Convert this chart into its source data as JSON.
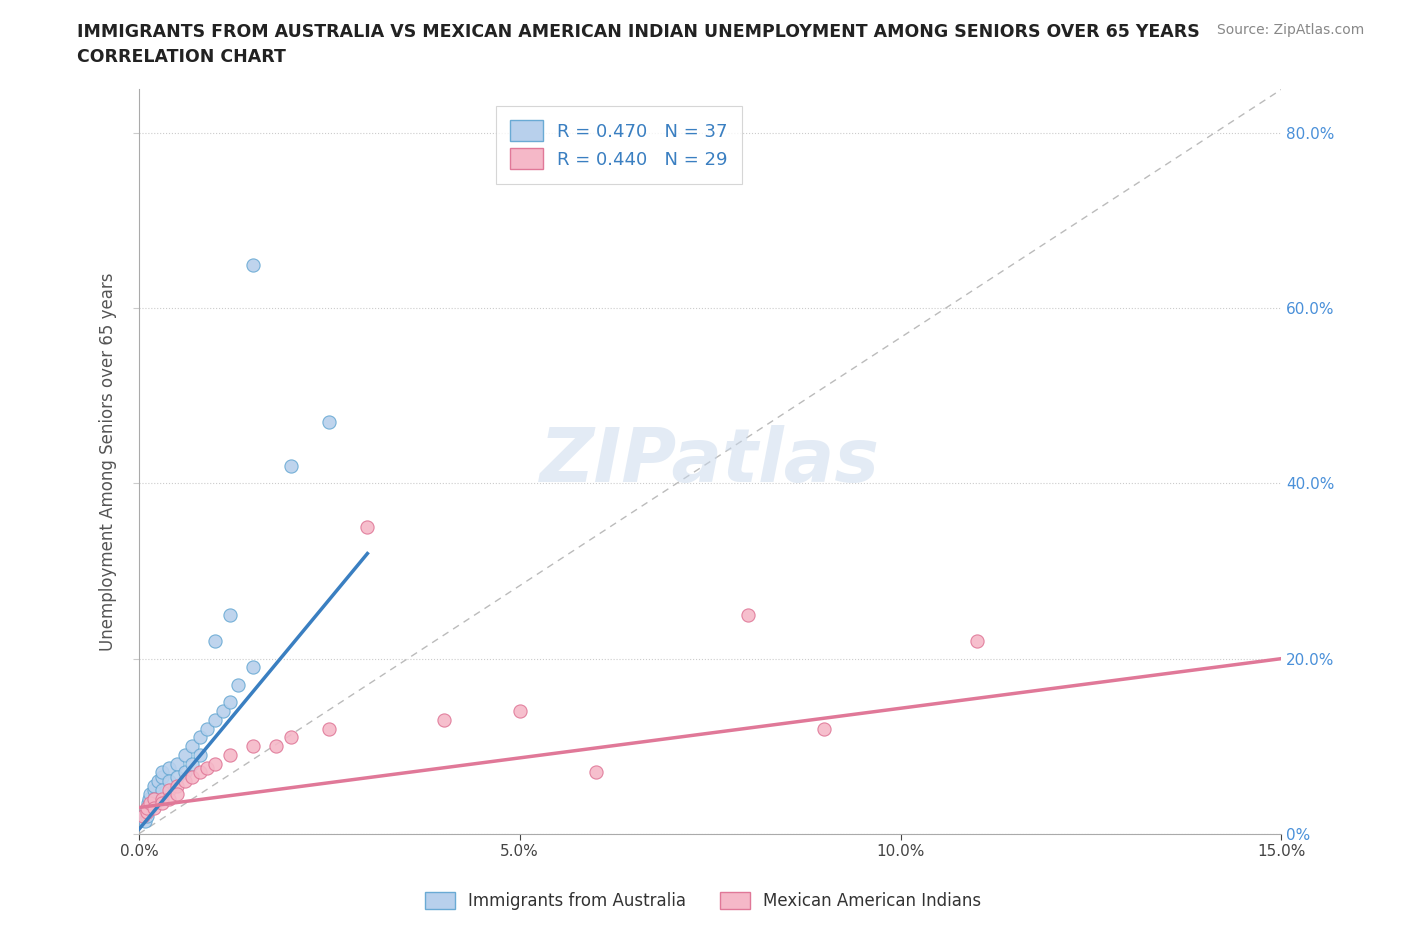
{
  "title_line1": "IMMIGRANTS FROM AUSTRALIA VS MEXICAN AMERICAN INDIAN UNEMPLOYMENT AMONG SENIORS OVER 65 YEARS",
  "title_line2": "CORRELATION CHART",
  "source": "Source: ZipAtlas.com",
  "ylabel": "Unemployment Among Seniors over 65 years",
  "xlim": [
    0.0,
    0.15
  ],
  "ylim": [
    0.0,
    0.85
  ],
  "xtick_vals": [
    0.0,
    0.05,
    0.1,
    0.15
  ],
  "xtick_labels": [
    "0.0%",
    "5.0%",
    "10.0%",
    "15.0%"
  ],
  "ytick_vals": [
    0.0,
    0.2,
    0.4,
    0.6,
    0.8
  ],
  "ytick_labels_right": [
    "0%",
    "20.0%",
    "40.0%",
    "60.0%",
    "80.0%"
  ],
  "series1_color": "#b8d0ec",
  "series1_edge": "#6aaad4",
  "series1_line_color": "#3a7fc1",
  "series2_color": "#f5b8c8",
  "series2_edge": "#e07898",
  "series2_line_color": "#e07898",
  "ref_line_color": "#bbbbbb",
  "watermark": "ZIPatlas",
  "legend_r1": "R = 0.470   N = 37",
  "legend_r2": "R = 0.440   N = 29",
  "legend_label1": "Immigrants from Australia",
  "legend_label2": "Mexican American Indians",
  "blue_x": [
    0.0005,
    0.0008,
    0.001,
    0.001,
    0.001,
    0.0012,
    0.0013,
    0.0015,
    0.0015,
    0.002,
    0.002,
    0.002,
    0.0025,
    0.003,
    0.003,
    0.003,
    0.004,
    0.004,
    0.005,
    0.005,
    0.006,
    0.006,
    0.007,
    0.007,
    0.008,
    0.008,
    0.009,
    0.01,
    0.011,
    0.012,
    0.013,
    0.015,
    0.02,
    0.025,
    0.01,
    0.012,
    0.015
  ],
  "blue_y": [
    0.02,
    0.015,
    0.025,
    0.03,
    0.02,
    0.035,
    0.04,
    0.045,
    0.03,
    0.05,
    0.055,
    0.04,
    0.06,
    0.065,
    0.07,
    0.05,
    0.075,
    0.06,
    0.08,
    0.065,
    0.09,
    0.07,
    0.1,
    0.08,
    0.11,
    0.09,
    0.12,
    0.13,
    0.14,
    0.15,
    0.17,
    0.19,
    0.42,
    0.47,
    0.22,
    0.25,
    0.65
  ],
  "pink_x": [
    0.0005,
    0.001,
    0.001,
    0.0015,
    0.002,
    0.002,
    0.003,
    0.003,
    0.004,
    0.004,
    0.005,
    0.005,
    0.006,
    0.007,
    0.008,
    0.009,
    0.01,
    0.012,
    0.015,
    0.018,
    0.02,
    0.025,
    0.03,
    0.04,
    0.05,
    0.06,
    0.08,
    0.09,
    0.11
  ],
  "pink_y": [
    0.02,
    0.025,
    0.03,
    0.035,
    0.04,
    0.03,
    0.04,
    0.035,
    0.05,
    0.04,
    0.055,
    0.045,
    0.06,
    0.065,
    0.07,
    0.075,
    0.08,
    0.09,
    0.1,
    0.1,
    0.11,
    0.12,
    0.35,
    0.13,
    0.14,
    0.07,
    0.25,
    0.12,
    0.22
  ],
  "blue_trend_x": [
    0.0,
    0.03
  ],
  "blue_trend_y": [
    0.005,
    0.32
  ],
  "pink_trend_x": [
    0.0,
    0.15
  ],
  "pink_trend_y": [
    0.03,
    0.2
  ]
}
